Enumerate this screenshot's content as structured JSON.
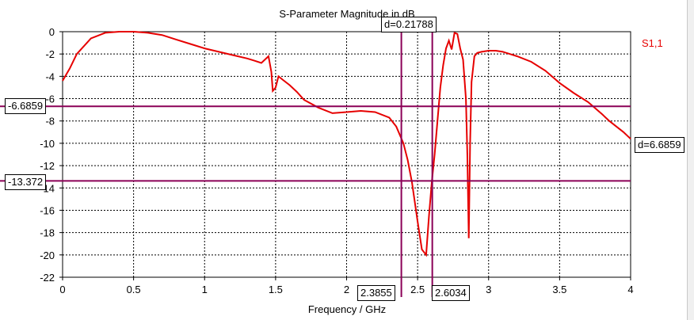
{
  "chart_data": {
    "type": "line",
    "title": "S-Parameter Magnitude in dB",
    "xlabel": "Frequency / GHz",
    "ylabel": "",
    "xlim": [
      0,
      4
    ],
    "ylim": [
      -22,
      0
    ],
    "grid": true,
    "legend_position": "top-right",
    "x_ticks": [
      "0",
      "0.5",
      "1",
      "1.5",
      "2",
      "2.5",
      "3",
      "3.5",
      "4"
    ],
    "y_ticks": [
      "0",
      "-2",
      "-4",
      "-6",
      "-8",
      "-10",
      "-12",
      "-14",
      "-16",
      "-18",
      "-20",
      "-22"
    ],
    "series": [
      {
        "name": "S1,1",
        "color": "#e60000",
        "x": [
          0,
          0.05,
          0.1,
          0.2,
          0.3,
          0.4,
          0.5,
          0.6,
          0.7,
          0.8,
          0.9,
          1.0,
          1.1,
          1.2,
          1.3,
          1.35,
          1.4,
          1.45,
          1.47,
          1.48,
          1.5,
          1.52,
          1.55,
          1.6,
          1.65,
          1.7,
          1.8,
          1.9,
          2.0,
          2.1,
          2.2,
          2.3,
          2.35,
          2.4,
          2.43,
          2.46,
          2.5,
          2.53,
          2.56,
          2.58,
          2.6,
          2.62,
          2.64,
          2.66,
          2.68,
          2.7,
          2.72,
          2.74,
          2.76,
          2.78,
          2.8,
          2.82,
          2.84,
          2.85,
          2.86,
          2.87,
          2.88,
          2.9,
          2.92,
          2.95,
          3.0,
          3.05,
          3.1,
          3.2,
          3.3,
          3.4,
          3.5,
          3.6,
          3.7,
          3.8,
          3.85,
          3.9,
          3.95,
          4.0
        ],
        "y": [
          -4.4,
          -3.3,
          -2.0,
          -0.6,
          -0.1,
          0.0,
          0.0,
          -0.1,
          -0.3,
          -0.7,
          -1.1,
          -1.5,
          -1.8,
          -2.1,
          -2.4,
          -2.6,
          -2.8,
          -2.2,
          -3.6,
          -5.3,
          -5.0,
          -4.0,
          -4.3,
          -4.8,
          -5.4,
          -6.1,
          -6.8,
          -7.3,
          -7.2,
          -7.1,
          -7.2,
          -7.7,
          -8.5,
          -10.0,
          -11.5,
          -13.5,
          -17.0,
          -19.5,
          -20.0,
          -16.5,
          -13.5,
          -11.0,
          -8.0,
          -5.0,
          -3.0,
          -1.5,
          -0.8,
          -1.6,
          -0.1,
          -0.2,
          -1.5,
          -2.5,
          -6.0,
          -11.0,
          -18.5,
          -10.0,
          -4.5,
          -2.2,
          -1.9,
          -1.8,
          -1.7,
          -1.7,
          -1.8,
          -2.2,
          -2.7,
          -3.5,
          -4.6,
          -5.5,
          -6.3,
          -7.4,
          -8.0,
          -8.5,
          -9.0,
          -9.6
        ]
      }
    ],
    "markers": {
      "h_low": -13.372,
      "h_high": -6.6859,
      "h_delta_label": "d=6.6859",
      "v_left": 2.3855,
      "v_right": 2.6034,
      "v_delta_label": "d=0.21788",
      "h_low_label": "-13.372",
      "h_high_label": "-6.6859",
      "v_left_label": "2.3855",
      "v_right_label": "2.6034",
      "marker_color": "#8b0057"
    }
  }
}
